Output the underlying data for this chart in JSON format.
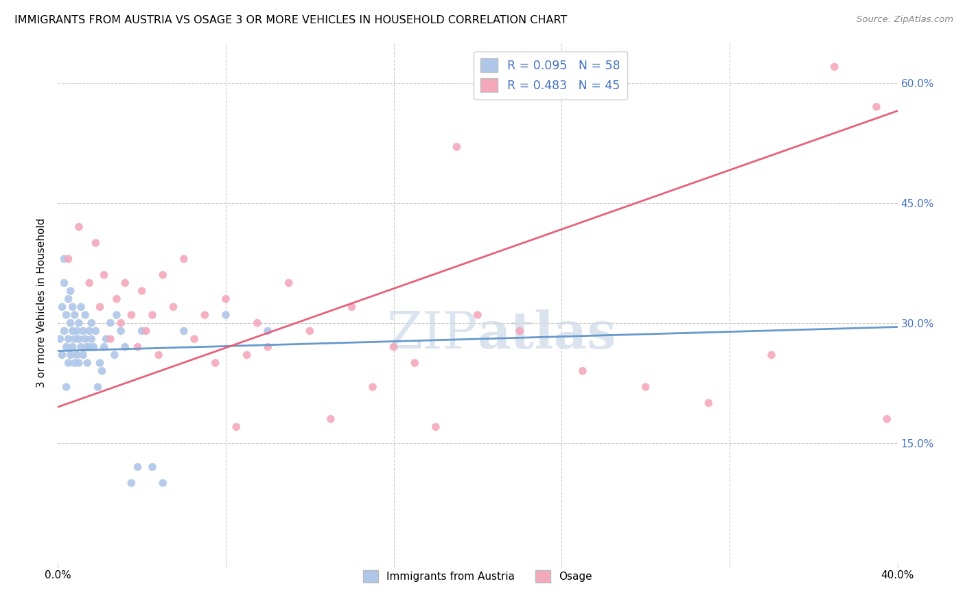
{
  "title": "IMMIGRANTS FROM AUSTRIA VS OSAGE 3 OR MORE VEHICLES IN HOUSEHOLD CORRELATION CHART",
  "source": "Source: ZipAtlas.com",
  "ylabel": "3 or more Vehicles in Household",
  "xmin": 0.0,
  "xmax": 0.4,
  "ymin": 0.0,
  "ymax": 0.65,
  "austria_R": 0.095,
  "austria_N": 58,
  "osage_R": 0.483,
  "osage_N": 45,
  "austria_color": "#aec6e8",
  "osage_color": "#f4a8bc",
  "austria_line_color": "#6699cc",
  "osage_line_color": "#e8607a",
  "watermark_color": "#cdd9e8",
  "austria_line_y0": 0.265,
  "austria_line_y1": 0.295,
  "osage_line_y0": 0.195,
  "osage_line_y1": 0.565,
  "austria_x": [
    0.001,
    0.002,
    0.002,
    0.003,
    0.003,
    0.003,
    0.004,
    0.004,
    0.004,
    0.005,
    0.005,
    0.005,
    0.006,
    0.006,
    0.006,
    0.007,
    0.007,
    0.007,
    0.008,
    0.008,
    0.008,
    0.009,
    0.009,
    0.01,
    0.01,
    0.01,
    0.011,
    0.011,
    0.012,
    0.012,
    0.013,
    0.013,
    0.014,
    0.014,
    0.015,
    0.015,
    0.016,
    0.016,
    0.017,
    0.018,
    0.019,
    0.02,
    0.021,
    0.022,
    0.023,
    0.025,
    0.027,
    0.028,
    0.03,
    0.032,
    0.035,
    0.038,
    0.04,
    0.045,
    0.05,
    0.06,
    0.08,
    0.1
  ],
  "austria_y": [
    0.28,
    0.32,
    0.26,
    0.35,
    0.38,
    0.29,
    0.27,
    0.31,
    0.22,
    0.33,
    0.28,
    0.25,
    0.3,
    0.26,
    0.34,
    0.27,
    0.29,
    0.32,
    0.28,
    0.25,
    0.31,
    0.26,
    0.29,
    0.28,
    0.3,
    0.25,
    0.27,
    0.32,
    0.26,
    0.29,
    0.28,
    0.31,
    0.27,
    0.25,
    0.29,
    0.27,
    0.28,
    0.3,
    0.27,
    0.29,
    0.22,
    0.25,
    0.24,
    0.27,
    0.28,
    0.3,
    0.26,
    0.31,
    0.29,
    0.27,
    0.1,
    0.12,
    0.29,
    0.12,
    0.1,
    0.29,
    0.31,
    0.29
  ],
  "osage_x": [
    0.005,
    0.01,
    0.015,
    0.018,
    0.02,
    0.022,
    0.025,
    0.028,
    0.03,
    0.032,
    0.035,
    0.038,
    0.04,
    0.042,
    0.045,
    0.048,
    0.05,
    0.055,
    0.06,
    0.065,
    0.07,
    0.075,
    0.08,
    0.085,
    0.09,
    0.095,
    0.1,
    0.11,
    0.12,
    0.13,
    0.14,
    0.15,
    0.16,
    0.17,
    0.18,
    0.19,
    0.2,
    0.22,
    0.25,
    0.28,
    0.31,
    0.34,
    0.37,
    0.39,
    0.395
  ],
  "osage_y": [
    0.38,
    0.42,
    0.35,
    0.4,
    0.32,
    0.36,
    0.28,
    0.33,
    0.3,
    0.35,
    0.31,
    0.27,
    0.34,
    0.29,
    0.31,
    0.26,
    0.36,
    0.32,
    0.38,
    0.28,
    0.31,
    0.25,
    0.33,
    0.17,
    0.26,
    0.3,
    0.27,
    0.35,
    0.29,
    0.18,
    0.32,
    0.22,
    0.27,
    0.25,
    0.17,
    0.52,
    0.31,
    0.29,
    0.24,
    0.22,
    0.2,
    0.26,
    0.62,
    0.57,
    0.18
  ]
}
